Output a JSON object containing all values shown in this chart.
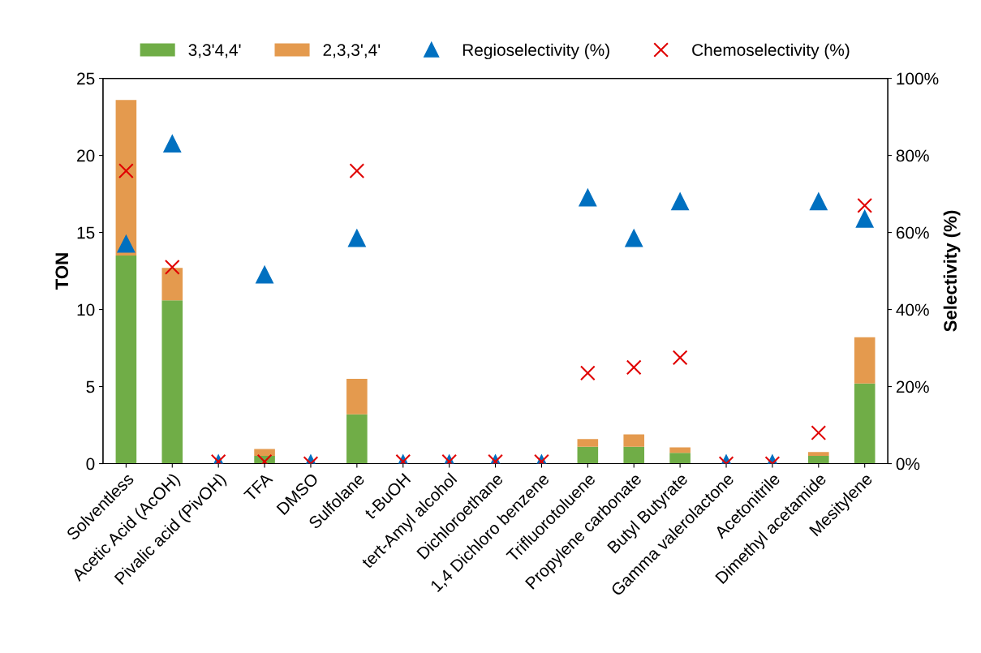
{
  "chart_data": {
    "type": "bar",
    "stacked": true,
    "ylabel": "TON",
    "y2label": "Selectivity (%)",
    "categories": [
      "Solventless",
      "Acetic Acid (AcOH)",
      "Pivalic acid (PivOH)",
      "TFA",
      "DMSO",
      "Sulfolane",
      "t-BuOH",
      "tert-Amyl alcohol",
      "Dichloroethane",
      "1,4 Dichloro benzene",
      "Trifluorotoluene",
      "Propylene carbonate",
      "Butyl Butyrate",
      "Gamma valerolactone",
      "Acetonitrile",
      "Dimethyl acetamide",
      "Mesitylene"
    ],
    "series": [
      {
        "name": "3,3'4,4'",
        "color": "#70ad47",
        "values": [
          13.5,
          10.6,
          0,
          0.5,
          0,
          3.2,
          0,
          0,
          0,
          0,
          1.1,
          1.1,
          0.7,
          0,
          0,
          0.5,
          5.2
        ]
      },
      {
        "name": "2,3,3',4'",
        "color": "#e49a4e",
        "values": [
          10.1,
          2.1,
          0,
          0.45,
          0,
          2.3,
          0,
          0,
          0,
          0,
          0.5,
          0.8,
          0.35,
          0,
          0,
          0.25,
          3.0
        ]
      },
      {
        "name": "Regioselectivity (%)",
        "type": "scatter",
        "axis": "y2",
        "marker": "triangle",
        "color": "#0070c0",
        "values": [
          57,
          83,
          0,
          49,
          0,
          58.5,
          0,
          0,
          0,
          0,
          69,
          58.5,
          68,
          0,
          0,
          68,
          63.5
        ]
      },
      {
        "name": "Chemoselectivity (%)",
        "type": "scatter",
        "axis": "y2",
        "marker": "cross",
        "color": "#e00000",
        "values": [
          76,
          51,
          0.5,
          0.5,
          0,
          76,
          0.5,
          0.5,
          0.5,
          0.5,
          23.5,
          25,
          27.5,
          0,
          0,
          8,
          67
        ]
      }
    ],
    "ylim": [
      0,
      25
    ],
    "yticks": [
      0,
      5,
      10,
      15,
      20,
      25
    ],
    "y2lim": [
      0,
      100
    ],
    "y2ticks": [
      {
        "value": 0,
        "label": "0%"
      },
      {
        "value": 20,
        "label": "20%"
      },
      {
        "value": 40,
        "label": "40%"
      },
      {
        "value": 60,
        "label": "60%"
      },
      {
        "value": 80,
        "label": "80%"
      },
      {
        "value": 100,
        "label": "100%"
      }
    ],
    "grid": false,
    "legend": "top"
  }
}
